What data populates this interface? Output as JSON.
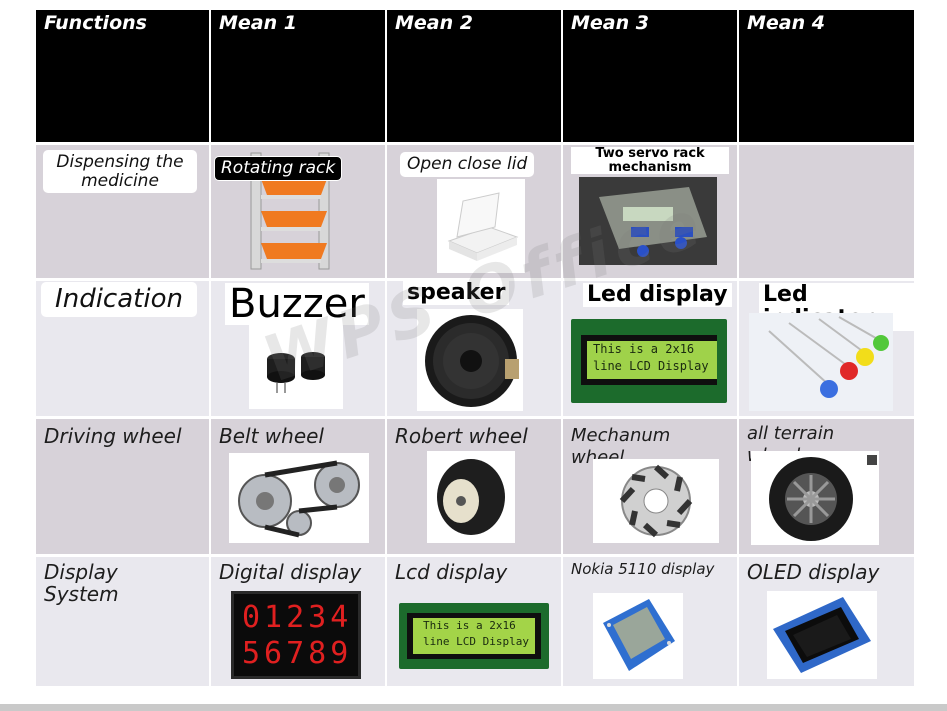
{
  "header": {
    "functions": "Functions",
    "mean1": "Mean 1",
    "mean2": "Mean 2",
    "mean3": "Mean 3",
    "mean4": "Mean 4"
  },
  "rows": {
    "dispensing": {
      "function": "Dispensing the medicine",
      "m1": "Rotating rack",
      "m2": "Open close lid",
      "m3": "Two servo rack mechanism"
    },
    "indication": {
      "function": "Indication",
      "m1": "Buzzer",
      "m2": "speaker",
      "m3": "Led display",
      "m4": "Led indicator",
      "lcd_line1": "This is a 2x16",
      "lcd_line2": "line LCD Display"
    },
    "driving": {
      "function": "Driving wheel",
      "m1": "Belt wheel",
      "m2": "Robert wheel",
      "m3": "Mechanum wheel",
      "m4": "all terrain wheels"
    },
    "display": {
      "function": "Display System",
      "m1": "Digital display",
      "m2": "Lcd display",
      "m3": "Nokia 5110 display",
      "m4": "OLED display",
      "digits_row1": "01234",
      "digits_row2": "56789",
      "lcd_line1": "This is a 2x16",
      "lcd_line2": "line LCD Display"
    }
  },
  "watermark": "WPS Office",
  "colors": {
    "header_bg": "#000000",
    "row_grey": "#d7d2d9",
    "row_light": "#e9e8ee",
    "lcd_green": "#9fd24a",
    "digit_red": "#e02020"
  }
}
